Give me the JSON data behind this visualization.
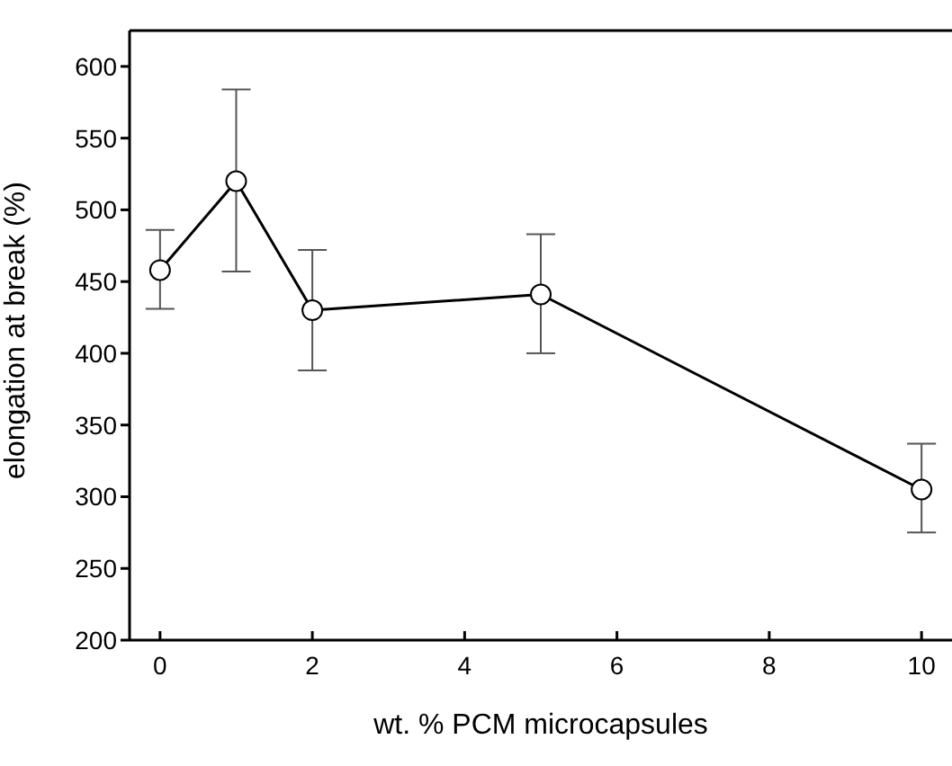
{
  "chart_data": {
    "type": "line",
    "xlabel": "wt. % PCM microcapsules",
    "ylabel": "elongation at break (%)",
    "x": [
      0,
      1,
      2,
      5,
      10
    ],
    "series": [
      {
        "color": "#000000",
        "values": [
          458,
          520,
          430,
          441,
          305
        ],
        "errors": [
          [
            431,
            486
          ],
          [
            457,
            584
          ],
          [
            388,
            472
          ],
          [
            400,
            483
          ],
          [
            275,
            337
          ]
        ]
      }
    ],
    "xlim": [
      -0.4,
      10.4
    ],
    "xticks": [
      0,
      2,
      4,
      6,
      8,
      10
    ],
    "ylim": [
      200,
      625
    ],
    "yticks": [
      200,
      250,
      300,
      350,
      400,
      450,
      500,
      550,
      600
    ],
    "marker": "circle",
    "line_style": "solid",
    "grid": false,
    "legend": false
  }
}
